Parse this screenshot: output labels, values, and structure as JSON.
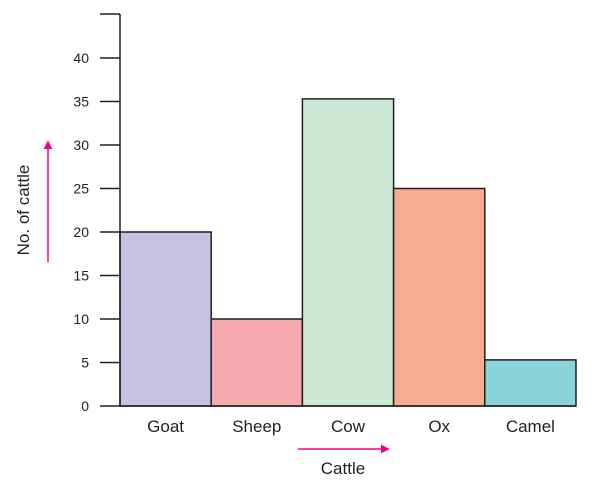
{
  "chart_data": {
    "type": "bar",
    "xlabel": "Cattle",
    "ylabel": "No. of cattle",
    "categories": [
      "Goat",
      "Sheep",
      "Cow",
      "Ox",
      "Camel"
    ],
    "values": [
      20,
      10,
      35.3,
      25,
      5.3
    ],
    "bar_colors": [
      "#c5c2e2",
      "#f6aaae",
      "#cde7d7",
      "#f9ab8f",
      "#8ad4d9"
    ],
    "yticks": [
      0,
      5,
      10,
      15,
      20,
      25,
      30,
      35,
      40
    ],
    "ylim": [
      0,
      40
    ],
    "grid": false,
    "legend": "none",
    "arrow_color": "#ec008c",
    "bar_outline_color": "#231f20"
  }
}
